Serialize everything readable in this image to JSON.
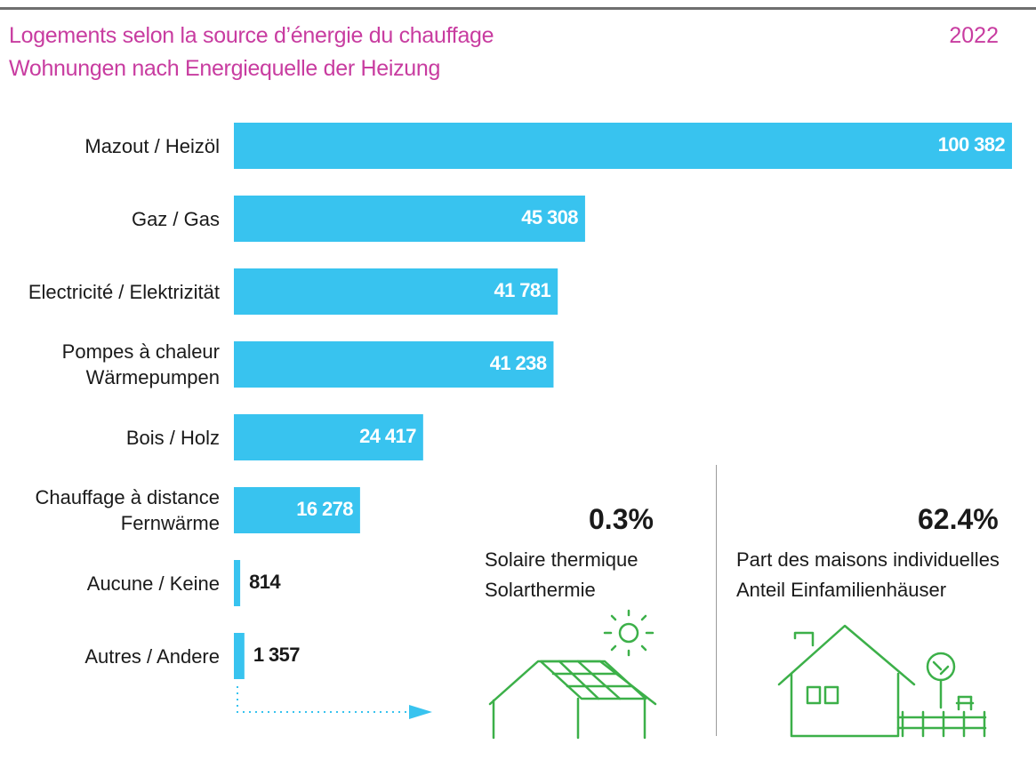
{
  "header": {
    "title_fr": "Logements selon la source d’énergie du chauffage",
    "title_de": "Wohnungen nach Energiequelle der Heizung",
    "year": "2022"
  },
  "colors": {
    "accent": "#c83ca0",
    "bar": "#38c3ef",
    "icon": "#3cb049",
    "rule": "#6f6f6f"
  },
  "chart_data": {
    "type": "bar",
    "orientation": "horizontal",
    "categories": [
      "Mazout / Heizöl",
      "Gaz / Gas",
      "Electricité / Elektrizität",
      "Pompes à chaleur\nWärmepumpen",
      "Bois / Holz",
      "Chauffage à distance\nFernwärme",
      "Aucune / Keine",
      "Autres / Andere"
    ],
    "values": [
      100382,
      45308,
      41781,
      41238,
      24417,
      16278,
      814,
      1357
    ],
    "value_labels": [
      "100 382",
      "45 308",
      "41 781",
      "41 238",
      "24 417",
      "16 278",
      "814",
      "1 357"
    ],
    "xlim": [
      0,
      100382
    ],
    "grid": false,
    "legend": "none"
  },
  "solar": {
    "percent": "0.3%",
    "label_fr": "Solaire thermique",
    "label_de": "Solarthermie",
    "icon": "solar-panel-roof-icon"
  },
  "houses": {
    "percent": "62.4%",
    "label_fr": "Part des maisons individuelles",
    "label_de": "Anteil Einfamilienhäuser",
    "icon": "house-with-tree-icon"
  }
}
